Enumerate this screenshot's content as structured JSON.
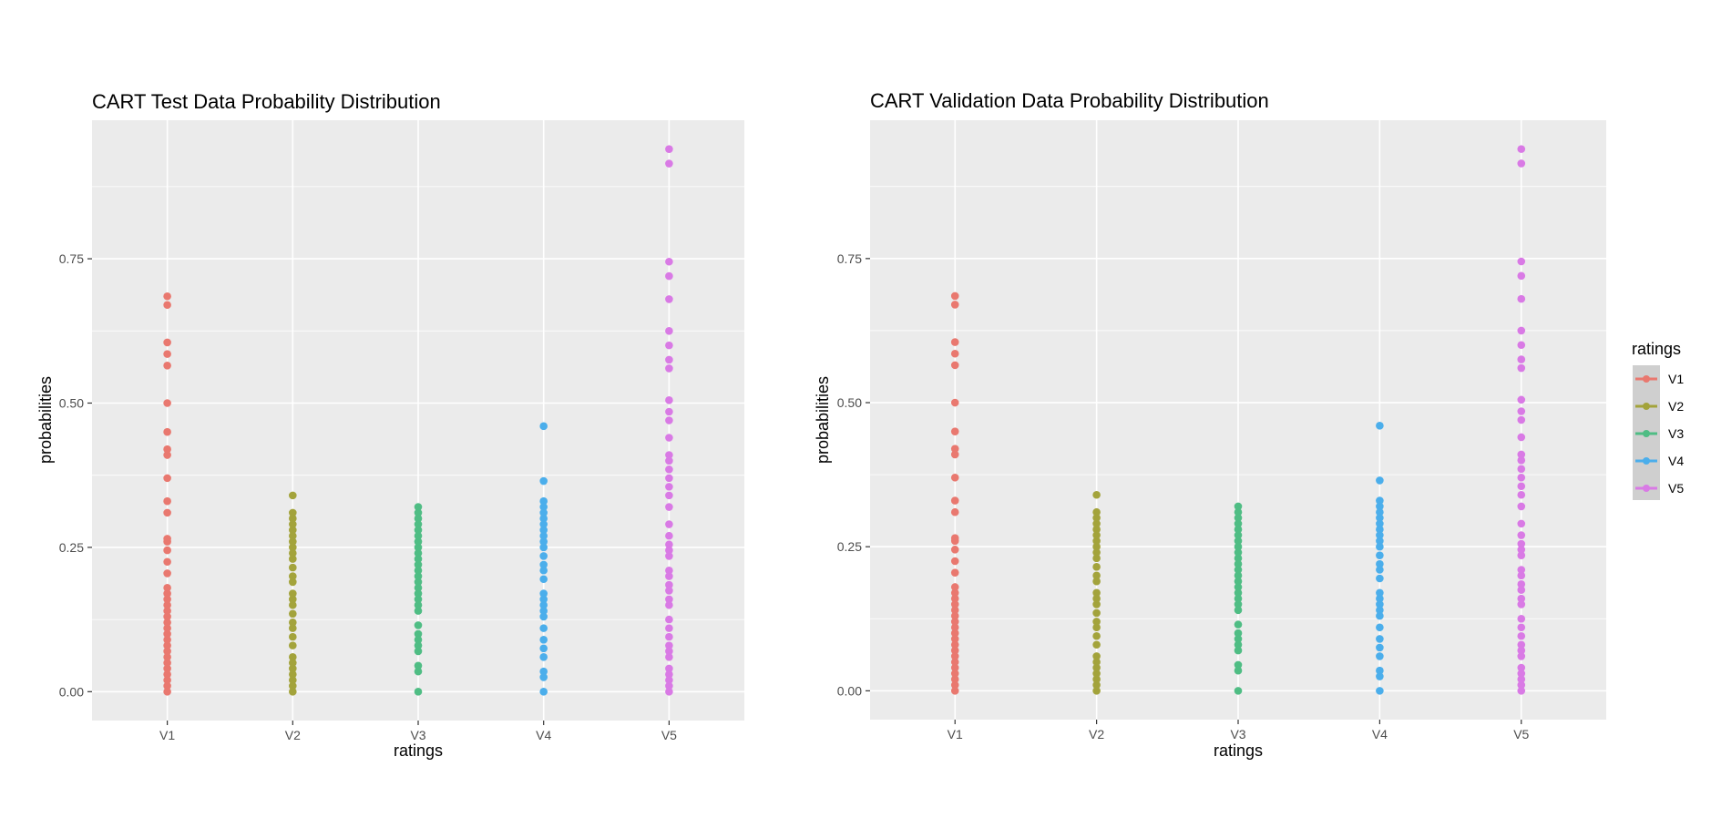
{
  "chart_data": [
    {
      "type": "scatter",
      "title": "CART Test Data Probability Distribution",
      "xlabel": "ratings",
      "ylabel": "probabilities",
      "categories": [
        "V1",
        "V2",
        "V3",
        "V4",
        "V5"
      ],
      "ylim": [
        -0.05,
        0.99
      ],
      "yticks": [
        0.0,
        0.25,
        0.5,
        0.75
      ],
      "ytick_labels": [
        "0.00",
        "0.25",
        "0.50",
        "0.75"
      ],
      "grid": true,
      "series": [
        {
          "name": "V1",
          "values": [
            0.0,
            0.01,
            0.02,
            0.03,
            0.04,
            0.05,
            0.06,
            0.07,
            0.08,
            0.09,
            0.1,
            0.11,
            0.12,
            0.13,
            0.14,
            0.15,
            0.16,
            0.17,
            0.18,
            0.205,
            0.225,
            0.245,
            0.26,
            0.265,
            0.31,
            0.33,
            0.37,
            0.41,
            0.42,
            0.45,
            0.5,
            0.565,
            0.585,
            0.605,
            0.67,
            0.685
          ]
        },
        {
          "name": "V2",
          "values": [
            0.0,
            0.01,
            0.02,
            0.03,
            0.04,
            0.05,
            0.06,
            0.08,
            0.095,
            0.11,
            0.12,
            0.135,
            0.15,
            0.16,
            0.17,
            0.19,
            0.2,
            0.215,
            0.23,
            0.24,
            0.25,
            0.26,
            0.27,
            0.28,
            0.29,
            0.3,
            0.31,
            0.34
          ]
        },
        {
          "name": "V3",
          "values": [
            0.0,
            0.035,
            0.045,
            0.07,
            0.08,
            0.09,
            0.1,
            0.115,
            0.14,
            0.15,
            0.16,
            0.17,
            0.18,
            0.19,
            0.2,
            0.21,
            0.22,
            0.23,
            0.24,
            0.25,
            0.26,
            0.27,
            0.28,
            0.29,
            0.3,
            0.31,
            0.32
          ]
        },
        {
          "name": "V4",
          "values": [
            0.0,
            0.025,
            0.035,
            0.06,
            0.075,
            0.09,
            0.11,
            0.13,
            0.14,
            0.15,
            0.16,
            0.17,
            0.195,
            0.21,
            0.22,
            0.235,
            0.25,
            0.26,
            0.27,
            0.28,
            0.29,
            0.3,
            0.31,
            0.32,
            0.33,
            0.365,
            0.46
          ]
        },
        {
          "name": "V5",
          "values": [
            0.0,
            0.01,
            0.02,
            0.03,
            0.04,
            0.06,
            0.07,
            0.08,
            0.095,
            0.11,
            0.125,
            0.15,
            0.16,
            0.175,
            0.185,
            0.2,
            0.21,
            0.235,
            0.245,
            0.255,
            0.27,
            0.29,
            0.32,
            0.34,
            0.355,
            0.37,
            0.385,
            0.4,
            0.41,
            0.44,
            0.47,
            0.485,
            0.505,
            0.56,
            0.575,
            0.6,
            0.625,
            0.68,
            0.72,
            0.745,
            0.915,
            0.94
          ]
        }
      ]
    },
    {
      "type": "scatter",
      "title": "CART Validation Data Probability Distribution",
      "xlabel": "ratings",
      "ylabel": "probabilities",
      "categories": [
        "V1",
        "V2",
        "V3",
        "V4",
        "V5"
      ],
      "ylim": [
        -0.05,
        0.99
      ],
      "yticks": [
        0.0,
        0.25,
        0.5,
        0.75
      ],
      "ytick_labels": [
        "0.00",
        "0.25",
        "0.50",
        "0.75"
      ],
      "grid": true,
      "legend": {
        "title": "ratings",
        "placement": "right",
        "entries": [
          "V1",
          "V2",
          "V3",
          "V4",
          "V5"
        ]
      },
      "series": [
        {
          "name": "V1",
          "values": [
            0.0,
            0.01,
            0.02,
            0.03,
            0.04,
            0.05,
            0.06,
            0.07,
            0.08,
            0.09,
            0.1,
            0.11,
            0.12,
            0.13,
            0.14,
            0.15,
            0.16,
            0.17,
            0.18,
            0.205,
            0.225,
            0.245,
            0.26,
            0.265,
            0.31,
            0.33,
            0.37,
            0.41,
            0.42,
            0.45,
            0.5,
            0.565,
            0.585,
            0.605,
            0.67,
            0.685
          ]
        },
        {
          "name": "V2",
          "values": [
            0.0,
            0.01,
            0.02,
            0.03,
            0.04,
            0.05,
            0.06,
            0.08,
            0.095,
            0.11,
            0.12,
            0.135,
            0.15,
            0.16,
            0.17,
            0.19,
            0.2,
            0.215,
            0.23,
            0.24,
            0.25,
            0.26,
            0.27,
            0.28,
            0.29,
            0.3,
            0.31,
            0.34
          ]
        },
        {
          "name": "V3",
          "values": [
            0.0,
            0.035,
            0.045,
            0.07,
            0.08,
            0.09,
            0.1,
            0.115,
            0.14,
            0.15,
            0.16,
            0.17,
            0.18,
            0.19,
            0.2,
            0.21,
            0.22,
            0.23,
            0.24,
            0.25,
            0.26,
            0.27,
            0.28,
            0.29,
            0.3,
            0.31,
            0.32
          ]
        },
        {
          "name": "V4",
          "values": [
            0.0,
            0.025,
            0.035,
            0.06,
            0.075,
            0.09,
            0.11,
            0.13,
            0.14,
            0.15,
            0.16,
            0.17,
            0.195,
            0.21,
            0.22,
            0.235,
            0.25,
            0.26,
            0.27,
            0.28,
            0.29,
            0.3,
            0.31,
            0.32,
            0.33,
            0.365,
            0.46
          ]
        },
        {
          "name": "V5",
          "values": [
            0.0,
            0.01,
            0.02,
            0.03,
            0.04,
            0.06,
            0.07,
            0.08,
            0.095,
            0.11,
            0.125,
            0.15,
            0.16,
            0.175,
            0.185,
            0.2,
            0.21,
            0.235,
            0.245,
            0.255,
            0.27,
            0.29,
            0.32,
            0.34,
            0.355,
            0.37,
            0.385,
            0.4,
            0.41,
            0.44,
            0.47,
            0.485,
            0.505,
            0.56,
            0.575,
            0.6,
            0.625,
            0.68,
            0.72,
            0.745,
            0.915,
            0.94
          ]
        }
      ]
    }
  ],
  "colors": {
    "V1": "#E9786F",
    "V2": "#A3A33B",
    "V3": "#4FBD84",
    "V4": "#4BAEEB",
    "V5": "#D97AE5",
    "panel_background": "#EBEBEB",
    "gridline": "#FFFFFF",
    "legend_key_background": "#CFCFCF"
  }
}
